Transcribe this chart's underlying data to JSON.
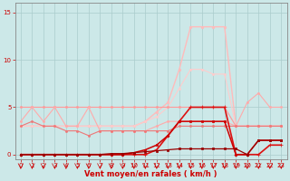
{
  "x": [
    0,
    1,
    2,
    3,
    4,
    5,
    6,
    7,
    8,
    9,
    10,
    11,
    12,
    13,
    14,
    15,
    16,
    17,
    18,
    19,
    20,
    21,
    22,
    23
  ],
  "series": [
    {
      "label": "dark_red_bottom1",
      "y": [
        0.0,
        0.0,
        0.0,
        0.0,
        0.0,
        0.0,
        0.0,
        0.0,
        0.1,
        0.1,
        0.2,
        0.3,
        0.4,
        0.5,
        0.6,
        0.6,
        0.6,
        0.6,
        0.6,
        0.6,
        0.0,
        1.5,
        1.5,
        1.5
      ],
      "color": "#990000",
      "linewidth": 0.9,
      "marker": "s",
      "markersize": 1.5,
      "zorder": 8
    },
    {
      "label": "dark_red_main",
      "y": [
        0.0,
        0.0,
        0.0,
        0.0,
        0.0,
        0.0,
        0.0,
        0.0,
        0.0,
        0.0,
        0.2,
        0.5,
        1.0,
        2.0,
        3.5,
        3.5,
        3.5,
        3.5,
        3.5,
        0.0,
        0.0,
        1.5,
        1.5,
        1.5
      ],
      "color": "#cc0000",
      "linewidth": 1.1,
      "marker": "s",
      "markersize": 2.0,
      "zorder": 7
    },
    {
      "label": "dark_red_rising",
      "y": [
        0.0,
        0.0,
        0.0,
        0.0,
        0.0,
        0.0,
        0.0,
        0.0,
        0.0,
        0.0,
        0.0,
        0.0,
        0.5,
        2.0,
        3.5,
        5.0,
        5.0,
        5.0,
        5.0,
        0.0,
        0.0,
        0.0,
        1.0,
        1.0
      ],
      "color": "#dd1111",
      "linewidth": 1.2,
      "marker": "+",
      "markersize": 3.0,
      "zorder": 6
    },
    {
      "label": "medium_pink_flat",
      "y": [
        3.0,
        3.5,
        3.0,
        3.0,
        2.5,
        2.5,
        2.0,
        2.5,
        2.5,
        2.5,
        2.5,
        2.5,
        2.5,
        2.5,
        3.0,
        3.0,
        3.0,
        3.0,
        3.0,
        3.0,
        3.0,
        3.0,
        3.0,
        3.0
      ],
      "color": "#ee7777",
      "linewidth": 0.8,
      "marker": "o",
      "markersize": 1.5,
      "zorder": 4
    },
    {
      "label": "pink_upper",
      "y": [
        5.0,
        5.0,
        5.0,
        5.0,
        5.0,
        5.0,
        5.0,
        5.0,
        5.0,
        5.0,
        5.0,
        5.0,
        5.0,
        5.0,
        5.0,
        5.0,
        5.0,
        5.0,
        5.0,
        3.0,
        3.0,
        3.0,
        3.0,
        3.0
      ],
      "color": "#ff9999",
      "linewidth": 0.8,
      "marker": "o",
      "markersize": 1.5,
      "zorder": 3
    },
    {
      "label": "pink_crossing",
      "y": [
        3.5,
        5.0,
        3.5,
        5.0,
        3.0,
        3.0,
        5.0,
        2.5,
        2.5,
        2.5,
        2.5,
        2.5,
        3.0,
        3.5,
        3.5,
        3.5,
        3.5,
        3.5,
        3.5,
        3.0,
        5.5,
        6.5,
        5.0,
        5.0
      ],
      "color": "#ffaaaa",
      "linewidth": 0.8,
      "marker": "o",
      "markersize": 1.5,
      "zorder": 3
    },
    {
      "label": "light_pink_rafales",
      "y": [
        3.0,
        3.0,
        3.0,
        3.0,
        3.0,
        3.0,
        3.0,
        3.0,
        3.0,
        3.0,
        3.0,
        3.5,
        4.5,
        5.5,
        9.0,
        13.5,
        13.5,
        13.5,
        13.5,
        3.0,
        3.0,
        3.0,
        3.0,
        3.0
      ],
      "color": "#ffbbbb",
      "linewidth": 1.0,
      "marker": "o",
      "markersize": 1.8,
      "zorder": 2
    },
    {
      "label": "light_pink_diagonal",
      "y": [
        3.0,
        3.0,
        3.0,
        3.0,
        3.0,
        3.0,
        3.0,
        3.0,
        3.0,
        3.0,
        3.0,
        3.5,
        4.0,
        5.0,
        7.0,
        9.0,
        9.0,
        8.5,
        8.5,
        3.0,
        3.0,
        3.0,
        3.0,
        3.0
      ],
      "color": "#ffcccc",
      "linewidth": 0.8,
      "marker": "o",
      "markersize": 1.5,
      "zorder": 2
    }
  ],
  "xlabel": "Vent moyen/en rafales ( km/h )",
  "ylim": [
    -0.5,
    16
  ],
  "xlim": [
    -0.5,
    23.5
  ],
  "yticks": [
    0,
    5,
    10,
    15
  ],
  "xticks": [
    0,
    1,
    2,
    3,
    4,
    5,
    6,
    7,
    8,
    9,
    10,
    11,
    12,
    13,
    14,
    15,
    16,
    17,
    18,
    19,
    20,
    21,
    22,
    23
  ],
  "grid_color": "#aacccc",
  "bg_color": "#cce8e8",
  "tick_color": "#cc0000",
  "label_color": "#cc0000",
  "axis_color": "#888888",
  "figsize": [
    3.2,
    2.0
  ],
  "dpi": 100
}
